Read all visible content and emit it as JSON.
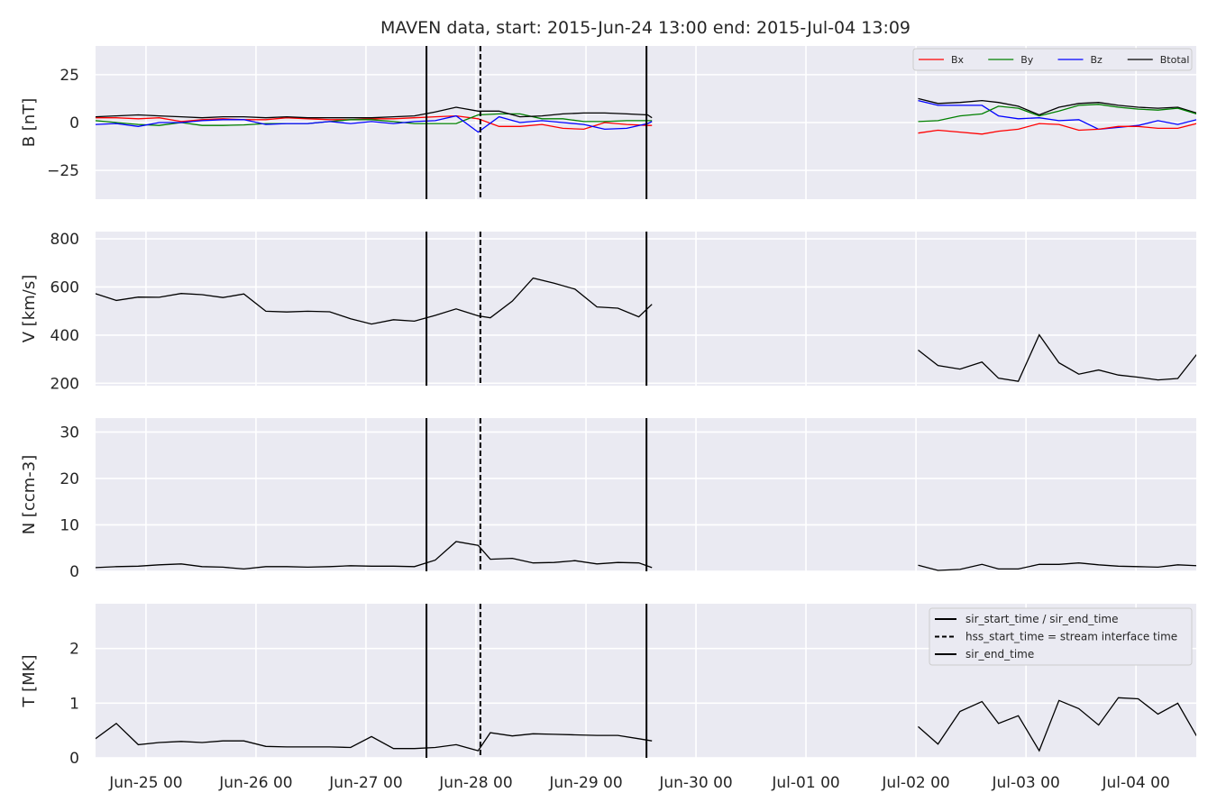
{
  "title": "MAVEN data, start: 2015-Jun-24 13:00  end: 2015-Jul-04 13:09",
  "chart_data": {
    "type": "line",
    "title": "MAVEN data, start: 2015-Jun-24 13:00  end: 2015-Jul-04 13:09",
    "x_unit": "days since 2015-Jun-24 00:00",
    "xlim": [
      0.5417,
      10.5479
    ],
    "x_ticks": [
      {
        "x": 1,
        "label": "Jun-25 00"
      },
      {
        "x": 2,
        "label": "Jun-26 00"
      },
      {
        "x": 3,
        "label": "Jun-27 00"
      },
      {
        "x": 4,
        "label": "Jun-28 00"
      },
      {
        "x": 5,
        "label": "Jun-29 00"
      },
      {
        "x": 6,
        "label": "Jun-30 00"
      },
      {
        "x": 7,
        "label": "Jul-01 00"
      },
      {
        "x": 8,
        "label": "Jul-02 00"
      },
      {
        "x": 9,
        "label": "Jul-03 00"
      },
      {
        "x": 10,
        "label": "Jul-04 00"
      }
    ],
    "event_lines": [
      {
        "x": 3.55,
        "style": "solid"
      },
      {
        "x": 4.04,
        "style": "dashed"
      },
      {
        "x": 5.55,
        "style": "solid"
      }
    ],
    "panels": [
      {
        "name": "B",
        "ylabel": "B [nT]",
        "ylim": [
          -40,
          40
        ],
        "yticks": [
          25,
          0,
          -25
        ],
        "ytick_labels": [
          "25",
          "0",
          "−25"
        ],
        "legend": {
          "position": "top-right",
          "ncol": 4
        },
        "series": [
          {
            "name": "Bx",
            "color": "#ff0000",
            "segments": [
              {
                "x": [
                  0.54,
                  0.73,
                  0.93,
                  1.12,
                  1.32,
                  1.51,
                  1.7,
                  1.89,
                  2.09,
                  2.28,
                  2.47,
                  2.67,
                  2.86,
                  3.05,
                  3.25,
                  3.44,
                  3.63,
                  3.82,
                  4.02,
                  4.21,
                  4.4,
                  4.6,
                  4.79,
                  4.98,
                  5.17,
                  5.37,
                  5.56,
                  5.6
                ],
                "y": [
                  2.5,
                  2.5,
                  2.0,
                  2.5,
                  0.5,
                  1.5,
                  2.0,
                  1.5,
                  1.5,
                  2.5,
                  2.0,
                  1.5,
                  1.5,
                  2.0,
                  2.0,
                  2.5,
                  3.0,
                  3.5,
                  2.0,
                  -2.0,
                  -2.0,
                  -1.0,
                  -3.0,
                  -3.5,
                  0.0,
                  -1.0,
                  -1.5,
                  -1.5
                ]
              }
            ]
          },
          {
            "name": "By",
            "color": "#008000",
            "segments": [
              {
                "x": [
                  0.54,
                  0.73,
                  0.93,
                  1.12,
                  1.32,
                  1.51,
                  1.7,
                  1.89,
                  2.09,
                  2.28,
                  2.47,
                  2.67,
                  2.86,
                  3.05,
                  3.25,
                  3.44,
                  3.63,
                  3.82,
                  4.02,
                  4.21,
                  4.4,
                  4.6,
                  4.79,
                  4.98,
                  5.17,
                  5.37,
                  5.56,
                  5.6
                ],
                "y": [
                  1.0,
                  0.0,
                  -1.0,
                  -1.5,
                  0.0,
                  -1.5,
                  -1.5,
                  -1.2,
                  -0.5,
                  -0.5,
                  -0.5,
                  0.5,
                  1.5,
                  1.5,
                  0.5,
                  -0.5,
                  -0.5,
                  -0.5,
                  4.0,
                  4.5,
                  4.5,
                  2.0,
                  2.0,
                  0.5,
                  0.5,
                  1.0,
                  1.0,
                  1.0
                ]
              }
            ]
          },
          {
            "name": "Bz",
            "color": "#0000ff",
            "segments": [
              {
                "x": [
                  0.54,
                  0.73,
                  0.93,
                  1.12,
                  1.32,
                  1.51,
                  1.7,
                  1.89,
                  2.09,
                  2.28,
                  2.47,
                  2.67,
                  2.86,
                  3.05,
                  3.25,
                  3.44,
                  3.63,
                  3.82,
                  4.02,
                  4.21,
                  4.4,
                  4.6,
                  4.79,
                  4.98,
                  5.17,
                  5.37,
                  5.56,
                  5.6
                ],
                "y": [
                  -1.0,
                  -0.5,
                  -2.0,
                  0.0,
                  0.0,
                  1.0,
                  1.5,
                  1.5,
                  -1.0,
                  -0.5,
                  -0.5,
                  0.5,
                  -0.5,
                  0.5,
                  -0.5,
                  0.5,
                  1.0,
                  3.5,
                  -5.0,
                  3.0,
                  0.0,
                  1.0,
                  0.0,
                  -1.0,
                  -3.5,
                  -3.0,
                  -0.5,
                  0.5
                ]
              },
              {
                "x": [
                  8.02,
                  8.2,
                  8.4,
                  8.6,
                  8.75,
                  8.93,
                  9.12,
                  9.3,
                  9.48,
                  9.66,
                  9.84,
                  10.02,
                  10.2,
                  10.38,
                  10.55
                ],
                "y": [
                  11.5,
                  9.0,
                  9.0,
                  9.0,
                  3.5,
                  2.0,
                  2.5,
                  1.0,
                  1.5,
                  -3.5,
                  -2.5,
                  -1.5,
                  1.0,
                  -1.0,
                  1.5
                ]
              }
            ]
          },
          {
            "name": "Btotal",
            "color": "#000000",
            "segments": [
              {
                "x": [
                  0.54,
                  0.73,
                  0.93,
                  1.12,
                  1.32,
                  1.51,
                  1.7,
                  1.89,
                  2.09,
                  2.28,
                  2.47,
                  2.67,
                  2.86,
                  3.05,
                  3.25,
                  3.44,
                  3.63,
                  3.82,
                  4.02,
                  4.21,
                  4.4,
                  4.6,
                  4.79,
                  4.98,
                  5.17,
                  5.37,
                  5.56,
                  5.6
                ],
                "y": [
                  3.0,
                  3.5,
                  4.0,
                  3.5,
                  3.0,
                  2.5,
                  3.0,
                  3.0,
                  2.5,
                  3.0,
                  2.5,
                  2.5,
                  2.5,
                  2.5,
                  3.0,
                  3.5,
                  5.5,
                  8.0,
                  6.0,
                  6.0,
                  3.0,
                  3.5,
                  4.5,
                  5.0,
                  5.0,
                  4.5,
                  4.0,
                  2.5
                ]
              },
              {
                "x": [
                  8.02,
                  8.2,
                  8.4,
                  8.6,
                  8.75,
                  8.93,
                  9.12,
                  9.3,
                  9.48,
                  9.66,
                  9.84,
                  10.02,
                  10.2,
                  10.38,
                  10.55
                ],
                "y": [
                  12.5,
                  10.0,
                  10.5,
                  11.5,
                  10.5,
                  8.5,
                  4.0,
                  8.0,
                  10.0,
                  10.5,
                  9.0,
                  8.0,
                  7.5,
                  8.0,
                  5.0
                ]
              }
            ]
          },
          {
            "name": "",
            "color": "#008000",
            "segments": [
              {
                "x": [
                  8.02,
                  8.2,
                  8.4,
                  8.6,
                  8.75,
                  8.93,
                  9.12,
                  9.3,
                  9.48,
                  9.66,
                  9.84,
                  10.02,
                  10.2,
                  10.38,
                  10.55
                ],
                "y": [
                  0.5,
                  1.0,
                  3.5,
                  4.5,
                  8.5,
                  7.5,
                  3.5,
                  6.0,
                  9.0,
                  9.5,
                  8.0,
                  7.0,
                  6.5,
                  7.5,
                  4.5
                ]
              }
            ]
          },
          {
            "name": "",
            "color": "#ff0000",
            "segments": [
              {
                "x": [
                  8.02,
                  8.2,
                  8.4,
                  8.6,
                  8.75,
                  8.93,
                  9.12,
                  9.3,
                  9.48,
                  9.66,
                  9.84,
                  10.02,
                  10.2,
                  10.38,
                  10.55
                ],
                "y": [
                  -5.5,
                  -4.0,
                  -5.0,
                  -6.0,
                  -4.5,
                  -3.5,
                  -0.5,
                  -1.0,
                  -4.0,
                  -3.5,
                  -2.0,
                  -2.0,
                  -3.0,
                  -3.0,
                  -0.5
                ]
              }
            ]
          }
        ]
      },
      {
        "name": "V",
        "ylabel": "V [km/s]",
        "ylim": [
          190,
          830
        ],
        "yticks": [
          800,
          600,
          400,
          200
        ],
        "ytick_labels": [
          "800",
          "600",
          "400",
          "200"
        ],
        "series": [
          {
            "name": "V",
            "color": "#000000",
            "segments": [
              {
                "x": [
                  0.54,
                  0.73,
                  0.93,
                  1.12,
                  1.32,
                  1.51,
                  1.7,
                  1.89,
                  2.09,
                  2.28,
                  2.47,
                  2.67,
                  2.86,
                  3.05,
                  3.25,
                  3.44,
                  3.63,
                  3.82,
                  4.02,
                  4.13,
                  4.33,
                  4.52,
                  4.71,
                  4.9,
                  5.1,
                  5.29,
                  5.48,
                  5.6
                ],
                "y": [
                  572,
                  544,
                  558,
                  557,
                  573,
                  568,
                  556,
                  571,
                  499,
                  496,
                  499,
                  497,
                  468,
                  446,
                  464,
                  458,
                  482,
                  509,
                  480,
                  472,
                  541,
                  637,
                  616,
                  591,
                  517,
                  512,
                  476,
                  528
                ]
              },
              {
                "x": [
                  8.02,
                  8.2,
                  8.4,
                  8.6,
                  8.75,
                  8.93,
                  9.12,
                  9.3,
                  9.48,
                  9.66,
                  9.84,
                  10.02,
                  10.2,
                  10.38,
                  10.55
                ],
                "y": [
                  338,
                  274,
                  259,
                  288,
                  221,
                  208,
                  401,
                  285,
                  238,
                  255,
                  234,
                  225,
                  214,
                  220,
                  319
                ]
              }
            ]
          }
        ]
      },
      {
        "name": "N",
        "ylabel": "N [ccm-3]",
        "ylim": [
          0,
          33
        ],
        "yticks": [
          30,
          20,
          10,
          0
        ],
        "ytick_labels": [
          "30",
          "20",
          "10",
          "0"
        ],
        "series": [
          {
            "name": "N",
            "color": "#000000",
            "segments": [
              {
                "x": [
                  0.54,
                  0.73,
                  0.93,
                  1.12,
                  1.32,
                  1.51,
                  1.7,
                  1.89,
                  2.09,
                  2.28,
                  2.47,
                  2.67,
                  2.86,
                  3.05,
                  3.25,
                  3.44,
                  3.63,
                  3.82,
                  4.02,
                  4.13,
                  4.33,
                  4.52,
                  4.71,
                  4.9,
                  5.1,
                  5.29,
                  5.48,
                  5.6
                ],
                "y": [
                  0.8,
                  1.0,
                  1.1,
                  1.4,
                  1.6,
                  1.0,
                  0.9,
                  0.5,
                  1.0,
                  1.0,
                  0.9,
                  1.0,
                  1.2,
                  1.1,
                  1.1,
                  1.0,
                  2.4,
                  6.4,
                  5.6,
                  2.6,
                  2.8,
                  1.8,
                  1.9,
                  2.3,
                  1.6,
                  1.9,
                  1.8,
                  0.8
                ]
              },
              {
                "x": [
                  8.02,
                  8.2,
                  8.4,
                  8.6,
                  8.75,
                  8.93,
                  9.12,
                  9.3,
                  9.48,
                  9.66,
                  9.84,
                  10.02,
                  10.2,
                  10.38,
                  10.55
                ],
                "y": [
                  1.3,
                  0.2,
                  0.4,
                  1.5,
                  0.5,
                  0.5,
                  1.5,
                  1.5,
                  1.8,
                  1.4,
                  1.1,
                  1.0,
                  0.9,
                  1.4,
                  1.2
                ]
              }
            ]
          }
        ]
      },
      {
        "name": "T",
        "ylabel": "T [MK]",
        "ylim": [
          0,
          2.82
        ],
        "yticks": [
          2,
          1,
          0
        ],
        "ytick_labels": [
          "2",
          "1",
          "0"
        ],
        "legend": {
          "position": "top-right",
          "ncol": 1
        },
        "series": [
          {
            "name": "T",
            "color": "#000000",
            "segments": [
              {
                "x": [
                  0.54,
                  0.73,
                  0.93,
                  1.12,
                  1.32,
                  1.51,
                  1.7,
                  1.89,
                  2.09,
                  2.28,
                  2.47,
                  2.67,
                  2.86,
                  3.05,
                  3.25,
                  3.44,
                  3.63,
                  3.82,
                  4.02,
                  4.13,
                  4.33,
                  4.52,
                  4.71,
                  4.9,
                  5.1,
                  5.29,
                  5.48,
                  5.6
                ],
                "y": [
                  0.35,
                  0.63,
                  0.24,
                  0.28,
                  0.3,
                  0.28,
                  0.31,
                  0.31,
                  0.21,
                  0.2,
                  0.2,
                  0.2,
                  0.19,
                  0.39,
                  0.17,
                  0.17,
                  0.19,
                  0.24,
                  0.13,
                  0.46,
                  0.4,
                  0.44,
                  0.43,
                  0.42,
                  0.41,
                  0.41,
                  0.35,
                  0.31
                ]
              },
              {
                "x": [
                  8.02,
                  8.2,
                  8.4,
                  8.6,
                  8.75,
                  8.93,
                  9.12,
                  9.3,
                  9.48,
                  9.66,
                  9.84,
                  10.02,
                  10.2,
                  10.38,
                  10.55
                ],
                "y": [
                  0.57,
                  0.25,
                  0.85,
                  1.03,
                  0.63,
                  0.77,
                  0.13,
                  1.05,
                  0.9,
                  0.6,
                  1.1,
                  1.08,
                  0.8,
                  1.0,
                  0.4
                ]
              }
            ]
          }
        ]
      }
    ],
    "legend_T": [
      {
        "label": "sir_start_time / sir_end_time",
        "style": "solid"
      },
      {
        "label": "hss_start_time = stream interface time",
        "style": "dashed"
      },
      {
        "label": "sir_end_time",
        "style": "solid"
      }
    ],
    "grid": true,
    "background": "#eaeaf2",
    "grid_color": "#ffffff"
  }
}
